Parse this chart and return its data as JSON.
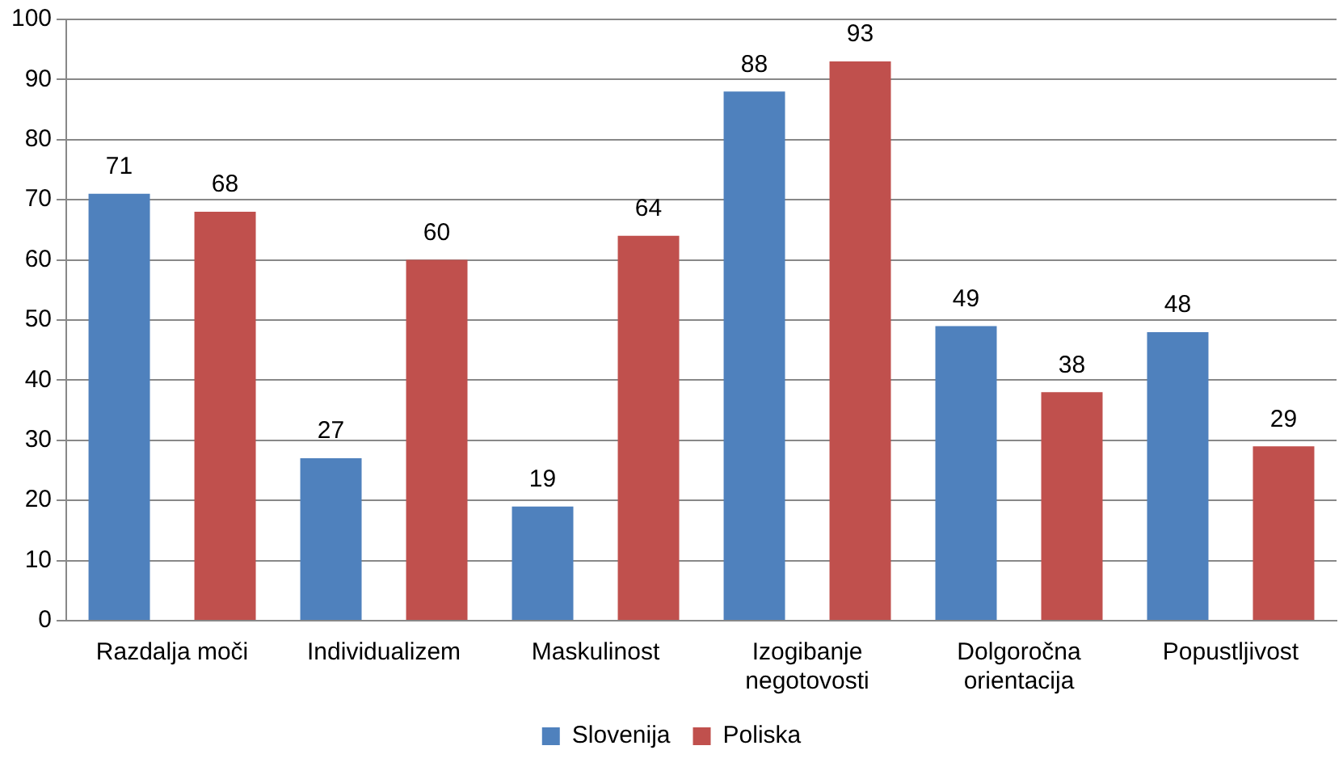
{
  "chart_data": {
    "type": "bar",
    "categories": [
      "Razdalja moči",
      "Individualizem",
      "Maskulinost",
      "Izogibanje negotovosti",
      "Dolgoročna orientacija",
      "Popustljivost"
    ],
    "series": [
      {
        "name": "Slovenija",
        "color": "#4f81bd",
        "values": [
          71,
          27,
          19,
          88,
          49,
          48
        ]
      },
      {
        "name": "Poliska",
        "color": "#c0504d",
        "values": [
          68,
          60,
          64,
          93,
          38,
          29
        ]
      }
    ],
    "ylim": [
      0,
      100
    ],
    "yticks": [
      0,
      10,
      20,
      30,
      40,
      50,
      60,
      70,
      80,
      90,
      100
    ],
    "grid": "y",
    "legend": "bottom",
    "data_labels": true
  }
}
